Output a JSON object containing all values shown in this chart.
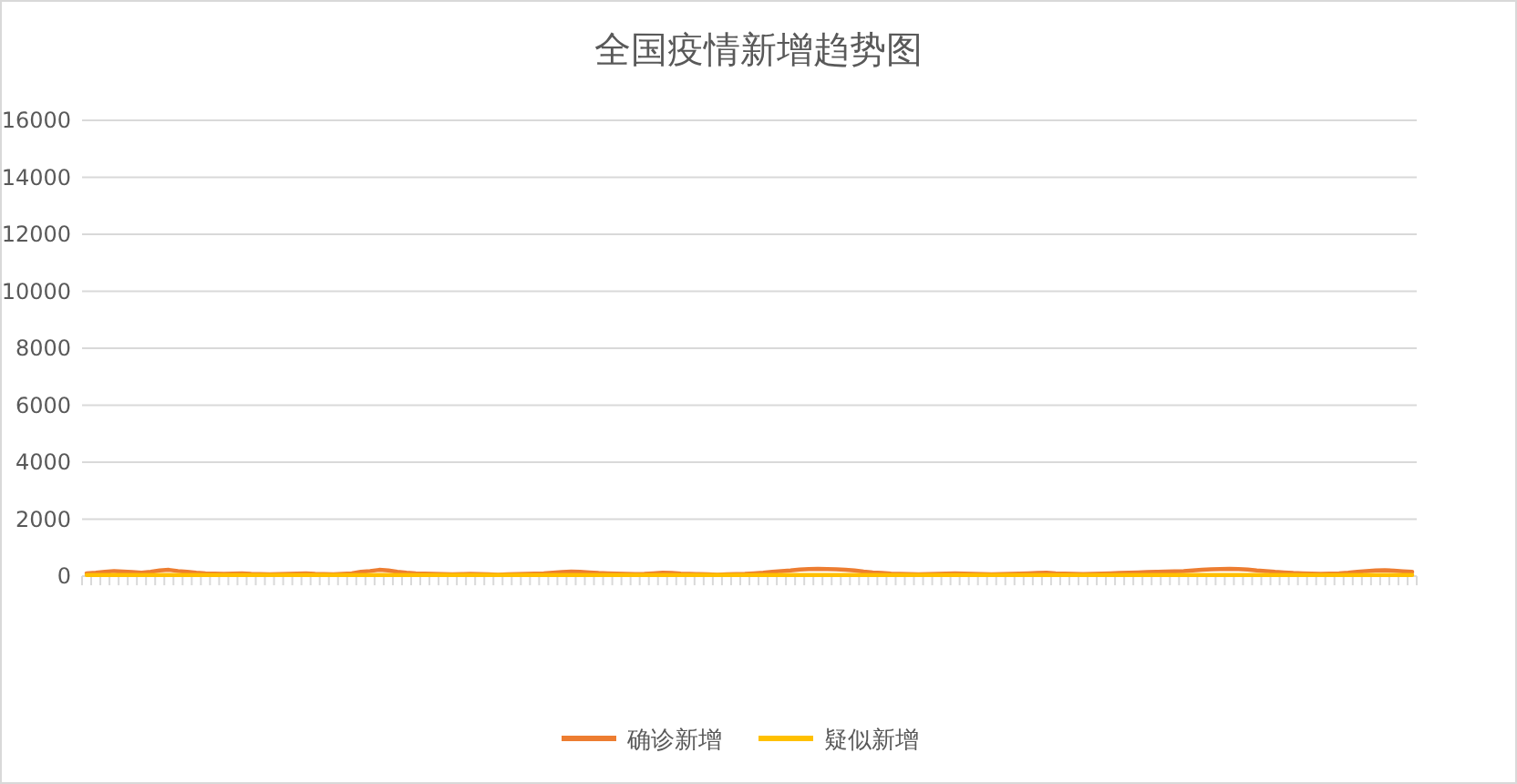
{
  "chart_data": {
    "type": "line",
    "title": "全国疫情新增趋势图",
    "categories": [
      null,
      null,
      null,
      null,
      null,
      null,
      null,
      null,
      null,
      null,
      null,
      null,
      null,
      null,
      null,
      null,
      null,
      null,
      null,
      null,
      null,
      null,
      null,
      null,
      null,
      null,
      null,
      null,
      null,
      null,
      null,
      null,
      null,
      null,
      null,
      null,
      null,
      null,
      null,
      null,
      null,
      null,
      null,
      null,
      null,
      null,
      null,
      null,
      null,
      null,
      null,
      null,
      null,
      null,
      null,
      null,
      null,
      null,
      null,
      null,
      null,
      null,
      null,
      null,
      null,
      null,
      null,
      null,
      null,
      null,
      null,
      null,
      null,
      null,
      null,
      null,
      null,
      null,
      null,
      null,
      null,
      null,
      null,
      null,
      null,
      null,
      null,
      null,
      null,
      null,
      null,
      null,
      null,
      null,
      null,
      null,
      null,
      null,
      null,
      null,
      null,
      null,
      null,
      null,
      null,
      null,
      null,
      null,
      null,
      null,
      null,
      null,
      null,
      null,
      null,
      null,
      null,
      null,
      null,
      null,
      null,
      null,
      null,
      null,
      null,
      null,
      null,
      null,
      null,
      null,
      null,
      null,
      null,
      null,
      null,
      null,
      null,
      null,
      null,
      null,
      null,
      null,
      null,
      null,
      null,
      null
    ],
    "series": [
      {
        "name": "确诊新增",
        "color": "#ed7d31",
        "values": [
          100,
          120,
          150,
          180,
          160,
          140,
          120,
          150,
          200,
          220,
          180,
          150,
          120,
          100,
          90,
          80,
          90,
          100,
          80,
          70,
          60,
          70,
          80,
          90,
          100,
          80,
          70,
          60,
          80,
          100,
          150,
          180,
          220,
          200,
          150,
          120,
          100,
          90,
          80,
          70,
          60,
          70,
          80,
          70,
          60,
          50,
          60,
          70,
          80,
          90,
          100,
          120,
          140,
          160,
          150,
          130,
          110,
          100,
          90,
          80,
          70,
          80,
          100,
          120,
          110,
          90,
          80,
          70,
          60,
          50,
          60,
          70,
          80,
          100,
          120,
          150,
          180,
          200,
          230,
          250,
          260,
          250,
          240,
          220,
          200,
          160,
          130,
          110,
          90,
          80,
          70,
          60,
          70,
          80,
          90,
          100,
          90,
          80,
          70,
          60,
          70,
          80,
          90,
          100,
          110,
          120,
          100,
          90,
          80,
          70,
          80,
          90,
          100,
          110,
          120,
          130,
          140,
          150,
          160,
          170,
          180,
          200,
          220,
          240,
          250,
          260,
          250,
          230,
          200,
          180,
          150,
          130,
          110,
          100,
          90,
          80,
          90,
          100,
          120,
          150,
          180,
          200,
          210,
          190,
          170,
          150
        ]
      },
      {
        "name": "疑似新增",
        "color": "#ffc000",
        "values": [
          40,
          40,
          40,
          40,
          40,
          40,
          40,
          40,
          40,
          40,
          40,
          40,
          40,
          40,
          40,
          40,
          40,
          40,
          40,
          40,
          40,
          40,
          40,
          40,
          40,
          40,
          40,
          40,
          40,
          40,
          40,
          40,
          40,
          40,
          40,
          40,
          40,
          40,
          40,
          40,
          40,
          40,
          40,
          40,
          40,
          40,
          40,
          40,
          40,
          40,
          40,
          40,
          40,
          40,
          40,
          40,
          40,
          40,
          40,
          40,
          40,
          40,
          40,
          40,
          40,
          40,
          40,
          40,
          40,
          40,
          40,
          40,
          40,
          40,
          40,
          40,
          40,
          40,
          40,
          40,
          40,
          40,
          40,
          40,
          40,
          40,
          40,
          40,
          40,
          40,
          40,
          40,
          40,
          40,
          40,
          40,
          40,
          40,
          40,
          40,
          40,
          40,
          40,
          40,
          40,
          40,
          40,
          40,
          40,
          40,
          40,
          40,
          40,
          40,
          40,
          40,
          40,
          40,
          40,
          40,
          40,
          40,
          40,
          40,
          40,
          40,
          40,
          40,
          40,
          40,
          40,
          40,
          40,
          40,
          40,
          40,
          40,
          40,
          40,
          40,
          40,
          40,
          40,
          40,
          40,
          40
        ]
      }
    ],
    "ylim": [
      0,
      16000
    ],
    "yticks": [
      0,
      2000,
      4000,
      6000,
      8000,
      10000,
      12000,
      14000,
      16000
    ],
    "grid": "y",
    "legend": "bottom",
    "marker": "none",
    "line_style": "solid"
  }
}
